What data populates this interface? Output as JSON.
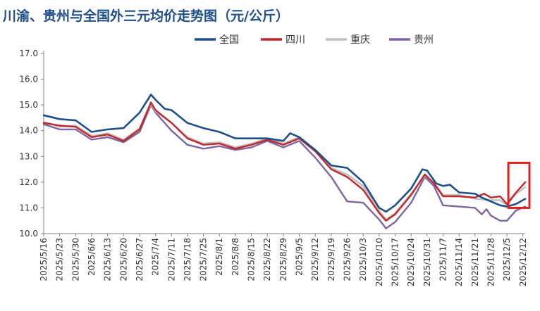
{
  "colors": {
    "national": "#1f4e8c",
    "sichuan": "#c0272d",
    "chongqing": "#bfbfbf",
    "guizhou": "#8064a2",
    "highlight": "#e02020",
    "axis": "#808080"
  },
  "chart_data": {
    "type": "line",
    "title": "川渝、贵州与全国外三元均价走势图（元/公斤）",
    "xlabel": "",
    "ylabel": "",
    "ylim": [
      10.0,
      17.0
    ],
    "y_ticks": [
      "10.0",
      "11.0",
      "12.0",
      "13.0",
      "14.0",
      "15.0",
      "16.0",
      "17.0"
    ],
    "x_ticks": [
      "2025/5/16",
      "2025/5/23",
      "2025/5/30",
      "2025/6/6",
      "2025/6/13",
      "2025/6/20",
      "2025/6/27",
      "2025/7/4",
      "2025/7/11",
      "2025/7/18",
      "2025/7/25",
      "2025/8/1",
      "2025/8/8",
      "2025/8/15",
      "2025/8/22",
      "2025/8/29",
      "2025/9/5",
      "2025/9/12",
      "2025/9/19",
      "2025/9/26",
      "2025/10/3",
      "2025/10/10",
      "2025/10/17",
      "2025/10/24",
      "2025/10/31",
      "2025/11/7",
      "2025/11/14",
      "2025/11/21",
      "2025/11/28",
      "2025/12/5",
      "2025/12/12"
    ],
    "x_start": "2025/5/16",
    "x_end": "2025/12/13",
    "legend_position": "top-right",
    "grid": false,
    "annotation": "red box highlighting latest values (2025/12/5 – 2025/12/13)",
    "series": [
      {
        "name": "全国",
        "color_key": "national",
        "points": [
          [
            "2025/5/16",
            14.6
          ],
          [
            "2025/5/23",
            14.45
          ],
          [
            "2025/5/30",
            14.4
          ],
          [
            "2025/6/6",
            13.95
          ],
          [
            "2025/6/13",
            14.05
          ],
          [
            "2025/6/20",
            14.1
          ],
          [
            "2025/6/27",
            14.7
          ],
          [
            "2025/7/2",
            15.4
          ],
          [
            "2025/7/4",
            15.2
          ],
          [
            "2025/7/8",
            14.85
          ],
          [
            "2025/7/11",
            14.8
          ],
          [
            "2025/7/18",
            14.3
          ],
          [
            "2025/7/25",
            14.1
          ],
          [
            "2025/8/1",
            13.95
          ],
          [
            "2025/8/8",
            13.7
          ],
          [
            "2025/8/15",
            13.7
          ],
          [
            "2025/8/22",
            13.7
          ],
          [
            "2025/8/29",
            13.6
          ],
          [
            "2025/9/1",
            13.9
          ],
          [
            "2025/9/5",
            13.75
          ],
          [
            "2025/9/12",
            13.25
          ],
          [
            "2025/9/19",
            12.65
          ],
          [
            "2025/9/26",
            12.55
          ],
          [
            "2025/10/3",
            12.0
          ],
          [
            "2025/10/10",
            11.0
          ],
          [
            "2025/10/13",
            10.85
          ],
          [
            "2025/10/17",
            11.1
          ],
          [
            "2025/10/24",
            11.75
          ],
          [
            "2025/10/29",
            12.5
          ],
          [
            "2025/10/31",
            12.45
          ],
          [
            "2025/11/4",
            11.95
          ],
          [
            "2025/11/7",
            11.85
          ],
          [
            "2025/11/10",
            11.9
          ],
          [
            "2025/11/14",
            11.6
          ],
          [
            "2025/11/21",
            11.55
          ],
          [
            "2025/11/24",
            11.4
          ],
          [
            "2025/11/28",
            11.25
          ],
          [
            "2025/12/2",
            11.1
          ],
          [
            "2025/12/5",
            11.05
          ],
          [
            "2025/12/9",
            11.15
          ],
          [
            "2025/12/13",
            11.35
          ]
        ]
      },
      {
        "name": "四川",
        "color_key": "sichuan",
        "points": [
          [
            "2025/5/16",
            14.3
          ],
          [
            "2025/5/23",
            14.2
          ],
          [
            "2025/5/30",
            14.15
          ],
          [
            "2025/6/6",
            13.75
          ],
          [
            "2025/6/13",
            13.85
          ],
          [
            "2025/6/20",
            13.6
          ],
          [
            "2025/6/27",
            14.05
          ],
          [
            "2025/7/2",
            15.1
          ],
          [
            "2025/7/4",
            14.8
          ],
          [
            "2025/7/11",
            14.3
          ],
          [
            "2025/7/18",
            13.7
          ],
          [
            "2025/7/25",
            13.45
          ],
          [
            "2025/8/1",
            13.5
          ],
          [
            "2025/8/8",
            13.3
          ],
          [
            "2025/8/15",
            13.45
          ],
          [
            "2025/8/22",
            13.65
          ],
          [
            "2025/8/29",
            13.45
          ],
          [
            "2025/9/5",
            13.7
          ],
          [
            "2025/9/12",
            13.2
          ],
          [
            "2025/9/19",
            12.5
          ],
          [
            "2025/9/26",
            12.2
          ],
          [
            "2025/10/3",
            11.7
          ],
          [
            "2025/10/10",
            10.8
          ],
          [
            "2025/10/13",
            10.5
          ],
          [
            "2025/10/17",
            10.75
          ],
          [
            "2025/10/24",
            11.5
          ],
          [
            "2025/10/30",
            12.3
          ],
          [
            "2025/11/3",
            11.95
          ],
          [
            "2025/11/7",
            11.45
          ],
          [
            "2025/11/14",
            11.45
          ],
          [
            "2025/11/21",
            11.4
          ],
          [
            "2025/11/25",
            11.55
          ],
          [
            "2025/11/28",
            11.4
          ],
          [
            "2025/12/2",
            11.45
          ],
          [
            "2025/12/5",
            11.15
          ],
          [
            "2025/12/9",
            11.6
          ],
          [
            "2025/12/13",
            12.0
          ]
        ]
      },
      {
        "name": "重庆",
        "color_key": "chongqing",
        "points": [
          [
            "2025/5/16",
            14.35
          ],
          [
            "2025/5/23",
            14.15
          ],
          [
            "2025/5/30",
            14.2
          ],
          [
            "2025/6/6",
            13.8
          ],
          [
            "2025/6/13",
            13.9
          ],
          [
            "2025/6/20",
            13.65
          ],
          [
            "2025/6/27",
            14.1
          ],
          [
            "2025/7/2",
            15.05
          ],
          [
            "2025/7/4",
            14.75
          ],
          [
            "2025/7/11",
            14.3
          ],
          [
            "2025/7/18",
            13.75
          ],
          [
            "2025/7/25",
            13.5
          ],
          [
            "2025/8/1",
            13.55
          ],
          [
            "2025/8/8",
            13.35
          ],
          [
            "2025/8/15",
            13.5
          ],
          [
            "2025/8/22",
            13.7
          ],
          [
            "2025/8/29",
            13.5
          ],
          [
            "2025/9/5",
            13.75
          ],
          [
            "2025/9/12",
            13.25
          ],
          [
            "2025/9/19",
            12.55
          ],
          [
            "2025/9/26",
            12.3
          ],
          [
            "2025/10/3",
            11.85
          ],
          [
            "2025/10/10",
            10.9
          ],
          [
            "2025/10/13",
            10.55
          ],
          [
            "2025/10/17",
            10.8
          ],
          [
            "2025/10/24",
            11.55
          ],
          [
            "2025/10/30",
            12.25
          ],
          [
            "2025/11/3",
            12.0
          ],
          [
            "2025/11/7",
            11.5
          ],
          [
            "2025/11/14",
            11.5
          ],
          [
            "2025/11/21",
            11.35
          ],
          [
            "2025/11/28",
            11.3
          ],
          [
            "2025/12/2",
            11.3
          ],
          [
            "2025/12/5",
            11.1
          ],
          [
            "2025/12/9",
            11.55
          ],
          [
            "2025/12/13",
            11.8
          ]
        ]
      },
      {
        "name": "贵州",
        "color_key": "guizhou",
        "points": [
          [
            "2025/5/16",
            14.25
          ],
          [
            "2025/5/23",
            14.05
          ],
          [
            "2025/5/30",
            14.05
          ],
          [
            "2025/6/6",
            13.65
          ],
          [
            "2025/6/13",
            13.75
          ],
          [
            "2025/6/20",
            13.55
          ],
          [
            "2025/6/27",
            13.95
          ],
          [
            "2025/7/2",
            15.0
          ],
          [
            "2025/7/4",
            14.7
          ],
          [
            "2025/7/11",
            14.0
          ],
          [
            "2025/7/18",
            13.45
          ],
          [
            "2025/7/25",
            13.3
          ],
          [
            "2025/8/1",
            13.4
          ],
          [
            "2025/8/8",
            13.25
          ],
          [
            "2025/8/15",
            13.35
          ],
          [
            "2025/8/22",
            13.6
          ],
          [
            "2025/8/29",
            13.35
          ],
          [
            "2025/9/5",
            13.6
          ],
          [
            "2025/9/12",
            12.95
          ],
          [
            "2025/9/19",
            12.2
          ],
          [
            "2025/9/26",
            11.25
          ],
          [
            "2025/10/3",
            11.2
          ],
          [
            "2025/10/10",
            10.55
          ],
          [
            "2025/10/13",
            10.2
          ],
          [
            "2025/10/17",
            10.45
          ],
          [
            "2025/10/24",
            11.2
          ],
          [
            "2025/10/30",
            12.2
          ],
          [
            "2025/11/3",
            11.85
          ],
          [
            "2025/11/7",
            11.1
          ],
          [
            "2025/11/14",
            11.05
          ],
          [
            "2025/11/21",
            11.0
          ],
          [
            "2025/11/24",
            10.75
          ],
          [
            "2025/11/26",
            10.95
          ],
          [
            "2025/11/28",
            10.7
          ],
          [
            "2025/12/2",
            10.5
          ],
          [
            "2025/12/5",
            10.5
          ],
          [
            "2025/12/9",
            10.9
          ],
          [
            "2025/12/13",
            11.05
          ]
        ]
      }
    ]
  }
}
